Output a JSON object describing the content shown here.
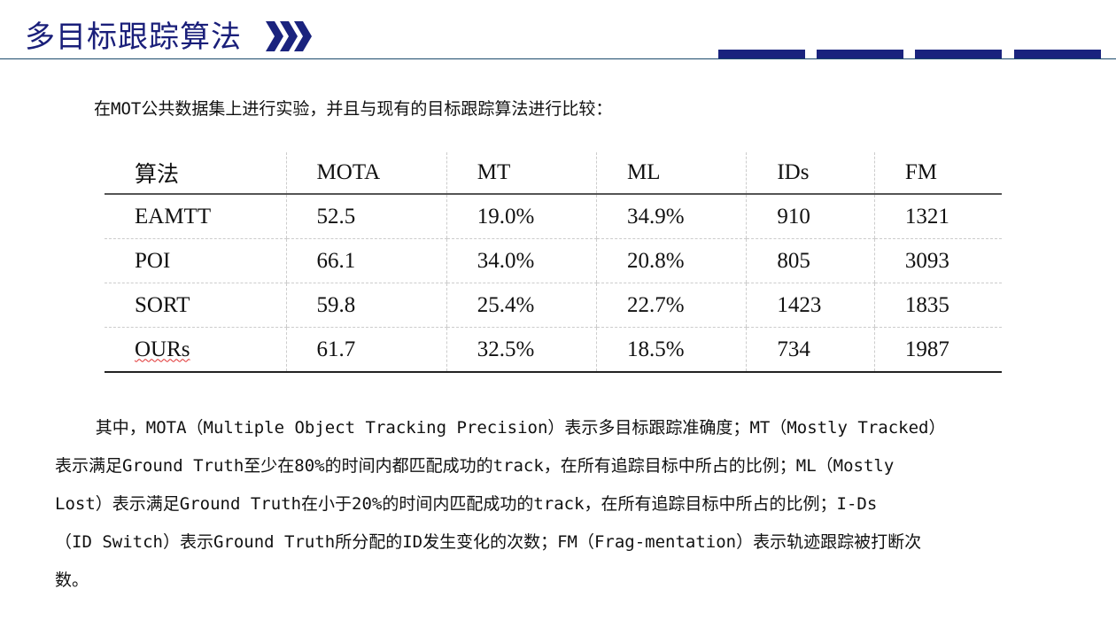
{
  "header": {
    "title": "多目标跟踪算法",
    "accent": "#1a237e"
  },
  "intro": "在MOT公共数据集上进行实验，并且与现有的目标跟踪算法进行比较：",
  "table": {
    "columns": [
      "算法",
      "MOTA",
      "MT",
      "ML",
      "IDs",
      "FM"
    ],
    "rows": [
      [
        "EAMTT",
        "52.5",
        "19.0%",
        "34.9%",
        "910",
        "1321"
      ],
      [
        "POI",
        "66.1",
        "34.0%",
        "20.8%",
        "805",
        "3093"
      ],
      [
        "SORT",
        "59.8",
        "25.4%",
        "22.7%",
        "1423",
        "1835"
      ],
      [
        "OURs",
        "61.7",
        "32.5%",
        "18.5%",
        "734",
        "1987"
      ]
    ]
  },
  "description": {
    "lines": [
      "    其中，MOTA（Multiple Object Tracking Precision）表示多目标跟踪准确度；MT（Mostly Tracked）",
      "表示满足Ground Truth至少在80%的时间内都匹配成功的track，在所有追踪目标中所占的比例；ML（Mostly",
      "Lost）表示满足Ground Truth在小于20%的时间内匹配成功的track，在所有追踪目标中所占的比例；I-Ds",
      "（ID Switch）表示Ground Truth所分配的ID发生变化的次数；FM（Frag-mentation）表示轨迹跟踪被打断次",
      "数。"
    ]
  }
}
